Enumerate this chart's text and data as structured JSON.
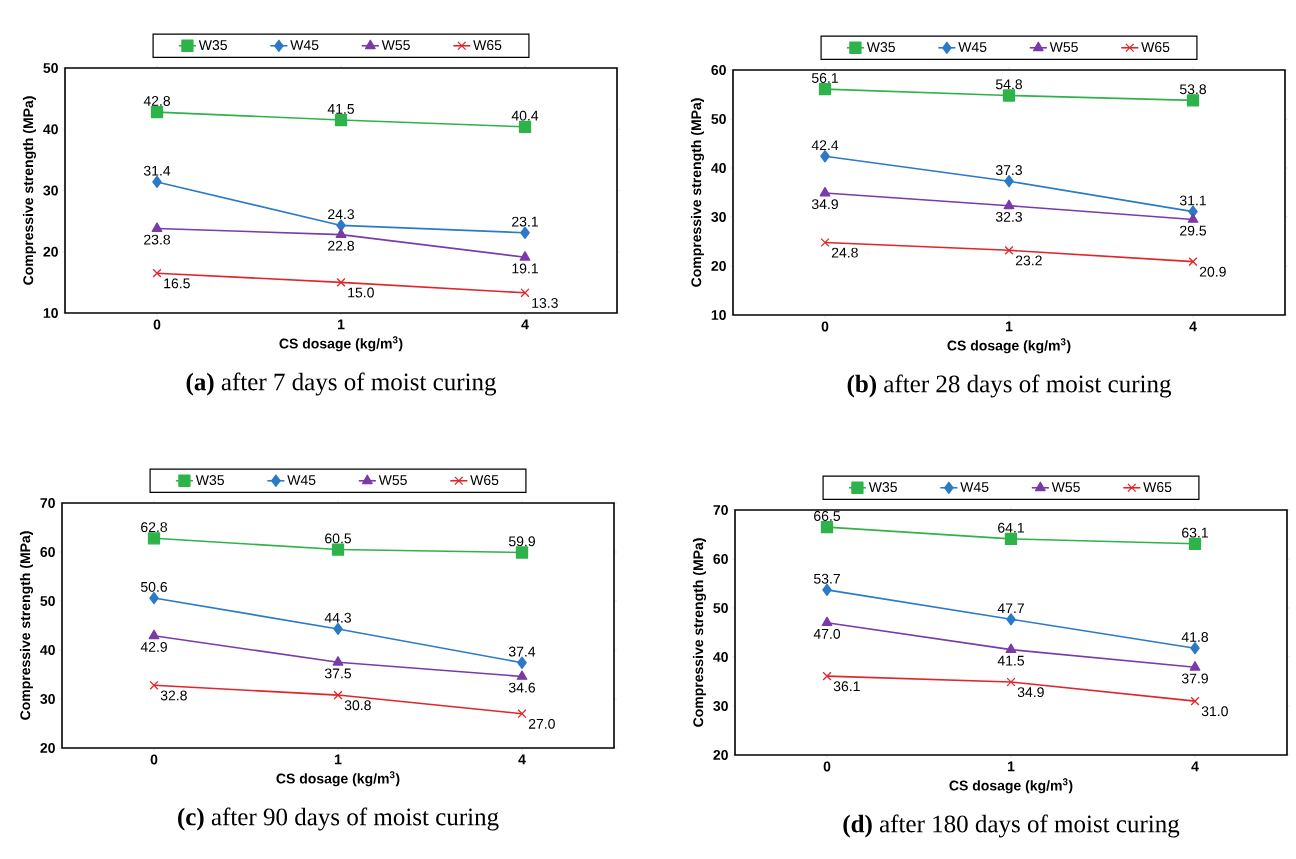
{
  "chart_data": [
    {
      "type": "line",
      "title": "**(a)**  after 7 days of moist curing",
      "xlabel": "CS dosage (kg/m$^{3}$)",
      "ylabel": "Compressive strength (MPa)",
      "categories": [
        "0",
        "1",
        "4"
      ],
      "ylim": [
        10,
        50
      ],
      "yticks": [
        10,
        20,
        30,
        40,
        50
      ],
      "legend": "top",
      "line_style": "solid",
      "series": [
        {
          "name": "W35",
          "color": "#2db34a",
          "marker": "square",
          "values": [
            42.8,
            41.5,
            40.4
          ],
          "value_labels": [
            "42.8",
            "41.5",
            "40.4"
          ]
        },
        {
          "name": "W45",
          "color": "#2a7ac8",
          "marker": "diamond",
          "values": [
            31.4,
            24.3,
            23.1
          ],
          "value_labels": [
            "31.4",
            "24.3",
            "23.1"
          ]
        },
        {
          "name": "W55",
          "color": "#7a3aa8",
          "marker": "triangle",
          "values": [
            23.8,
            22.8,
            19.1
          ],
          "value_labels": [
            "23.8",
            "22.8",
            "19.1"
          ]
        },
        {
          "name": "W65",
          "color": "#e0262b",
          "marker": "cross",
          "values": [
            16.5,
            15.0,
            13.3
          ],
          "value_labels": [
            "16.5",
            "15.0",
            "13.3"
          ]
        }
      ]
    },
    {
      "type": "line",
      "title": "**(b)**  after 28 days of moist curing",
      "xlabel": "CS dosage (kg/m$^{3}$)",
      "ylabel": "Compressive strength (MPa)",
      "categories": [
        "0",
        "1",
        "4"
      ],
      "ylim": [
        10,
        60
      ],
      "yticks": [
        10,
        20,
        30,
        40,
        50,
        60
      ],
      "legend": "top",
      "line_style": "solid",
      "series": [
        {
          "name": "W35",
          "color": "#2db34a",
          "marker": "square",
          "values": [
            56.1,
            54.8,
            53.8
          ],
          "value_labels": [
            "56.1",
            "54.8",
            "53.8"
          ]
        },
        {
          "name": "W45",
          "color": "#2a7ac8",
          "marker": "diamond",
          "values": [
            42.4,
            37.3,
            31.1
          ],
          "value_labels": [
            "42.4",
            "37.3",
            "31.1"
          ]
        },
        {
          "name": "W55",
          "color": "#7a3aa8",
          "marker": "triangle",
          "values": [
            34.9,
            32.3,
            29.5
          ],
          "value_labels": [
            "34.9",
            "32.3",
            "29.5"
          ]
        },
        {
          "name": "W65",
          "color": "#e0262b",
          "marker": "cross",
          "values": [
            24.8,
            23.2,
            20.9
          ],
          "value_labels": [
            "24.8",
            "23.2",
            "20.9"
          ]
        }
      ]
    },
    {
      "type": "line",
      "title": "**(c)**  after 90 days of moist curing",
      "xlabel": "CS dosage (kg/m$^{3}$)",
      "ylabel": "Compressive strength (MPa)",
      "categories": [
        "0",
        "1",
        "4"
      ],
      "ylim": [
        20,
        70
      ],
      "yticks": [
        20,
        30,
        40,
        50,
        60,
        70
      ],
      "legend": "top",
      "line_style": "solid",
      "series": [
        {
          "name": "W35",
          "color": "#2db34a",
          "marker": "square",
          "values": [
            62.8,
            60.5,
            59.9
          ],
          "value_labels": [
            "62.8",
            "60.5",
            "59.9"
          ]
        },
        {
          "name": "W45",
          "color": "#2a7ac8",
          "marker": "diamond",
          "values": [
            50.6,
            44.3,
            37.4
          ],
          "value_labels": [
            "50.6",
            "44.3",
            "37.4"
          ]
        },
        {
          "name": "W55",
          "color": "#7a3aa8",
          "marker": "triangle",
          "values": [
            42.9,
            37.5,
            34.6
          ],
          "value_labels": [
            "42.9",
            "37.5",
            "34.6"
          ]
        },
        {
          "name": "W65",
          "color": "#e0262b",
          "marker": "cross",
          "values": [
            32.8,
            30.8,
            27.0
          ],
          "value_labels": [
            "32.8",
            "30.8",
            "27.0"
          ]
        }
      ]
    },
    {
      "type": "line",
      "title": "**(d)**  after 180 days of moist curing",
      "xlabel": "CS dosage (kg/m$^{3}$)",
      "ylabel": "Compressive strength (MPa)",
      "categories": [
        "0",
        "1",
        "4"
      ],
      "ylim": [
        20,
        70
      ],
      "yticks": [
        20,
        30,
        40,
        50,
        60,
        70
      ],
      "legend": "top",
      "line_style": "solid",
      "series": [
        {
          "name": "W35",
          "color": "#2db34a",
          "marker": "square",
          "values": [
            66.5,
            64.1,
            63.1
          ],
          "value_labels": [
            "66.5",
            "64.1",
            "63.1"
          ]
        },
        {
          "name": "W45",
          "color": "#2a7ac8",
          "marker": "diamond",
          "values": [
            53.7,
            47.7,
            41.8
          ],
          "value_labels": [
            "53.7",
            "47.7",
            "41.8"
          ]
        },
        {
          "name": "W55",
          "color": "#7a3aa8",
          "marker": "triangle",
          "values": [
            47.0,
            41.5,
            37.9
          ],
          "value_labels": [
            "47.0",
            "41.5",
            "37.9"
          ]
        },
        {
          "name": "W65",
          "color": "#e0262b",
          "marker": "cross",
          "values": [
            36.1,
            34.9,
            31.0
          ],
          "value_labels": [
            "36.1",
            "34.9",
            "31.0"
          ]
        }
      ]
    }
  ]
}
